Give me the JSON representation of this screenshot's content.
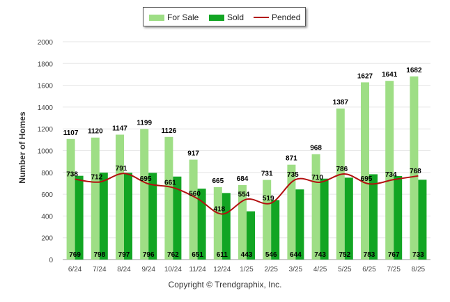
{
  "chart_data": {
    "type": "bar",
    "ylabel": "Number of Homes",
    "ylim": [
      0,
      2000
    ],
    "yticks": [
      "0",
      "200",
      "400",
      "600",
      "800",
      "1000",
      "1200",
      "1400",
      "1600",
      "1800",
      "2000"
    ],
    "categories": [
      "6/24",
      "7/24",
      "8/24",
      "9/24",
      "10/24",
      "11/24",
      "12/24",
      "1/25",
      "2/25",
      "3/25",
      "4/25",
      "5/25",
      "6/25",
      "7/25",
      "8/25"
    ],
    "series": [
      {
        "name": "For Sale",
        "type": "bar",
        "color": "#9ede85",
        "values": [
          1107,
          1120,
          1147,
          1199,
          1126,
          917,
          665,
          684,
          731,
          871,
          968,
          1387,
          1627,
          1641,
          1682
        ]
      },
      {
        "name": "Sold",
        "type": "bar",
        "color": "#12a523",
        "values": [
          769,
          798,
          797,
          796,
          762,
          651,
          611,
          443,
          546,
          644,
          743,
          752,
          783,
          767,
          733
        ]
      },
      {
        "name": "Pended",
        "type": "line",
        "color": "#b31010",
        "values": [
          738,
          712,
          791,
          695,
          661,
          560,
          418,
          554,
          519,
          735,
          710,
          786,
          695,
          734,
          768
        ]
      }
    ],
    "grid": true,
    "legend_position": "top-center"
  },
  "footer": {
    "copyright": "Copyright © Trendgraphix, Inc."
  }
}
